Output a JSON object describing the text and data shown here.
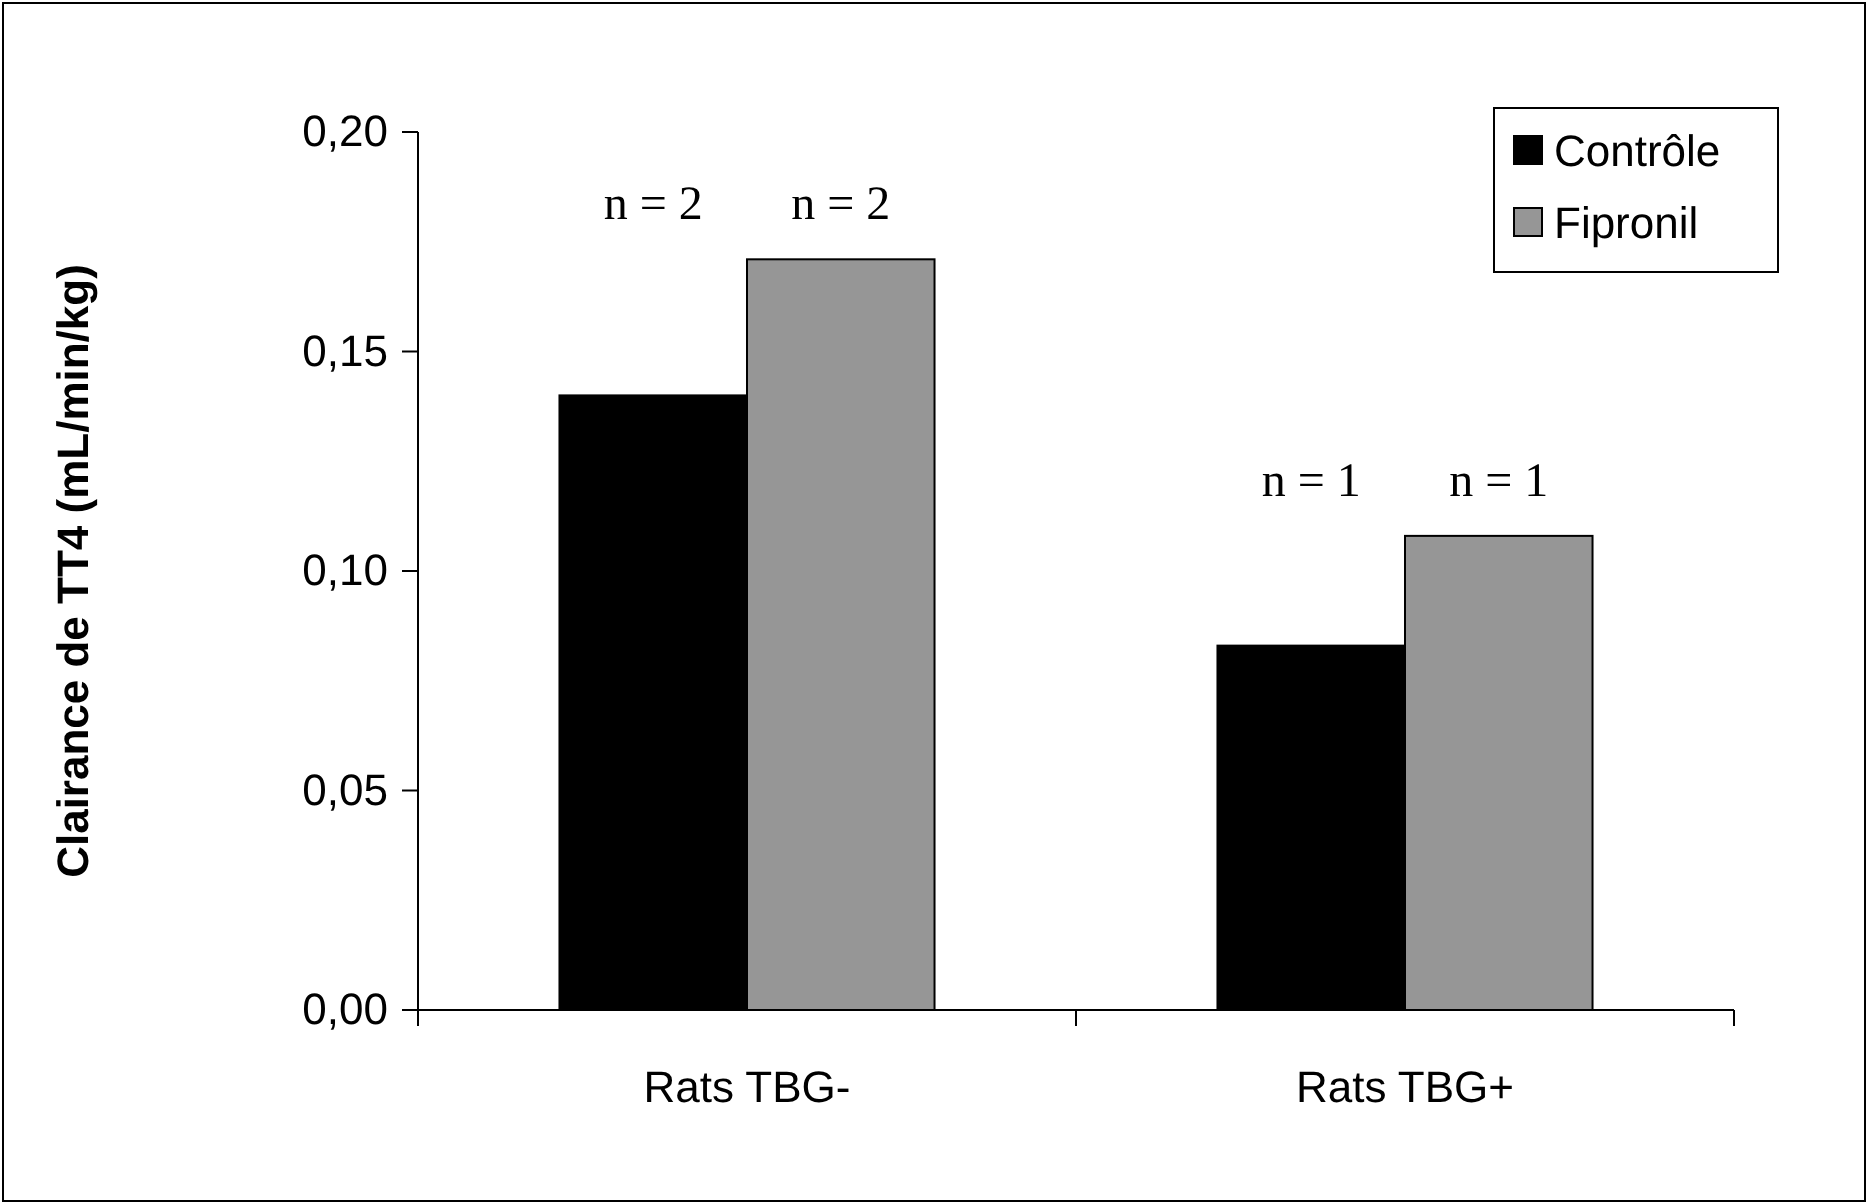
{
  "chart_data": {
    "type": "bar",
    "ylabel": "Clairance de TT4 (mL/min/kg)",
    "categories": [
      "Rats TBG-",
      "Rats TBG+"
    ],
    "series": [
      {
        "name": "Contrôle",
        "color": "#000000",
        "values": [
          0.14,
          0.083
        ]
      },
      {
        "name": "Fipronil",
        "color": "#969696",
        "values": [
          0.171,
          0.108
        ]
      }
    ],
    "annotations": [
      "n = 2",
      "n = 2",
      "n = 1",
      "n = 1"
    ],
    "ylim": [
      0,
      0.2
    ],
    "yticks": [
      {
        "value": 0,
        "label": "0,00"
      },
      {
        "value": 0.05,
        "label": "0,05"
      },
      {
        "value": 0.1,
        "label": "0,10"
      },
      {
        "value": 0.15,
        "label": "0,15"
      },
      {
        "value": 0.2,
        "label": "0,20"
      }
    ],
    "grid": false,
    "legend": "top right"
  }
}
